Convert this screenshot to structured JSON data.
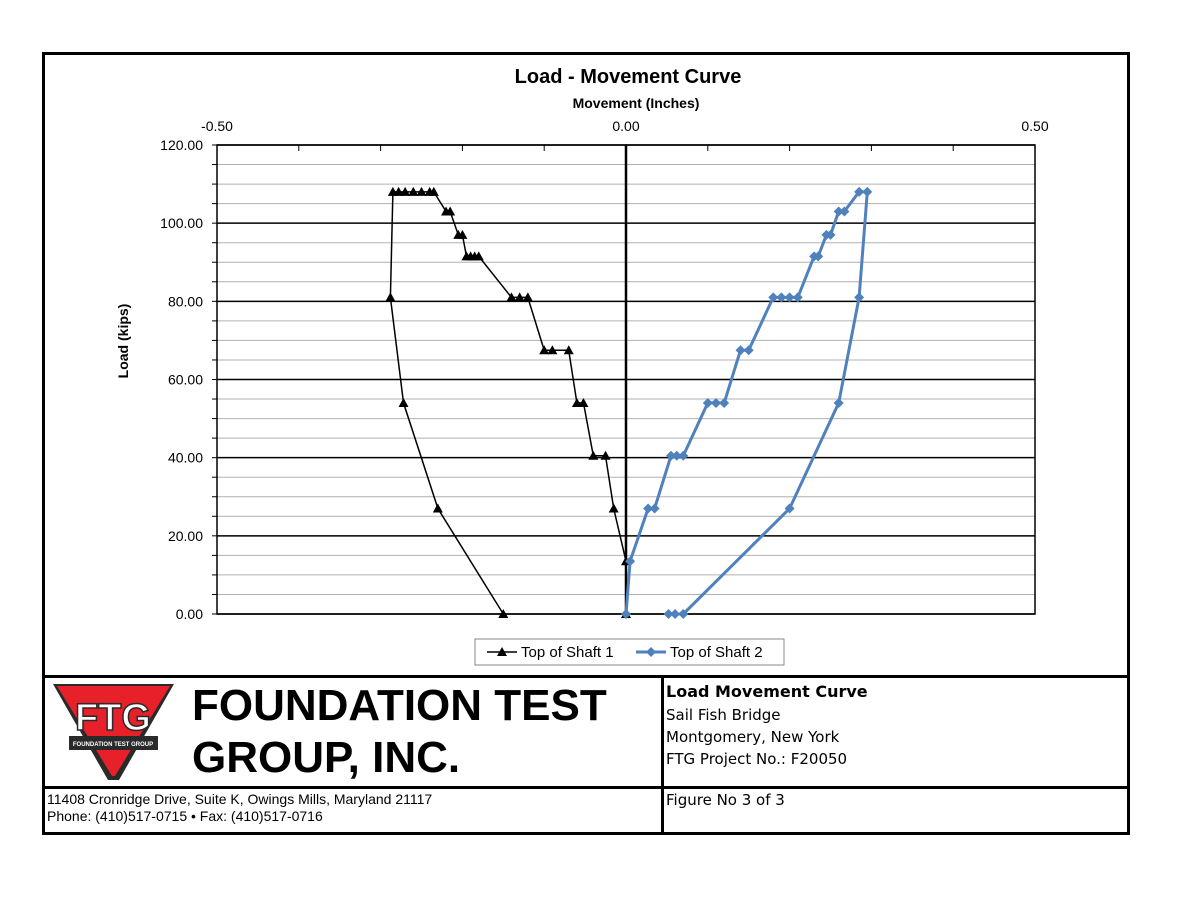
{
  "chart_data": {
    "type": "line",
    "title": "Load - Movement Curve",
    "xlabel": "Movement (Inches)",
    "ylabel": "Load (kips)",
    "xlim": [
      -0.5,
      0.5
    ],
    "ylim": [
      0,
      120
    ],
    "x_ticks": [
      "-0.50",
      "0.00",
      "0.50"
    ],
    "y_ticks": [
      "0.00",
      "20.00",
      "40.00",
      "60.00",
      "80.00",
      "100.00",
      "120.00"
    ],
    "x_axis_position": "top",
    "grid": true,
    "legend_position": "bottom",
    "series": [
      {
        "name": "Top of Shaft 1",
        "color": "#000000",
        "marker": "triangle",
        "points": [
          [
            0.0,
            0.0
          ],
          [
            0.0,
            13.5
          ],
          [
            -0.015,
            27.0
          ],
          [
            -0.025,
            40.5
          ],
          [
            -0.04,
            40.5
          ],
          [
            -0.052,
            54.0
          ],
          [
            -0.06,
            54.0
          ],
          [
            -0.07,
            67.5
          ],
          [
            -0.09,
            67.5
          ],
          [
            -0.1,
            67.5
          ],
          [
            -0.12,
            81.0
          ],
          [
            -0.13,
            81.0
          ],
          [
            -0.14,
            81.0
          ],
          [
            -0.18,
            91.5
          ],
          [
            -0.185,
            91.5
          ],
          [
            -0.19,
            91.5
          ],
          [
            -0.195,
            91.5
          ],
          [
            -0.2,
            97.0
          ],
          [
            -0.205,
            97.0
          ],
          [
            -0.215,
            103.0
          ],
          [
            -0.22,
            103.0
          ],
          [
            -0.235,
            108.0
          ],
          [
            -0.24,
            108.0
          ],
          [
            -0.25,
            108.0
          ],
          [
            -0.26,
            108.0
          ],
          [
            -0.27,
            108.0
          ],
          [
            -0.278,
            108.0
          ],
          [
            -0.285,
            108.0
          ],
          [
            -0.288,
            81.0
          ],
          [
            -0.272,
            54.0
          ],
          [
            -0.23,
            27.0
          ],
          [
            -0.15,
            0.0
          ]
        ]
      },
      {
        "name": "Top of Shaft 2",
        "color": "#4f81bd",
        "marker": "diamond",
        "points": [
          [
            0.0,
            0.0
          ],
          [
            0.005,
            13.5
          ],
          [
            0.027,
            27.0
          ],
          [
            0.035,
            27.0
          ],
          [
            0.055,
            40.5
          ],
          [
            0.062,
            40.5
          ],
          [
            0.07,
            40.5
          ],
          [
            0.1,
            54.0
          ],
          [
            0.11,
            54.0
          ],
          [
            0.12,
            54.0
          ],
          [
            0.14,
            67.5
          ],
          [
            0.15,
            67.5
          ],
          [
            0.18,
            81.0
          ],
          [
            0.19,
            81.0
          ],
          [
            0.2,
            81.0
          ],
          [
            0.21,
            81.0
          ],
          [
            0.23,
            91.5
          ],
          [
            0.235,
            91.5
          ],
          [
            0.245,
            97.0
          ],
          [
            0.25,
            97.0
          ],
          [
            0.26,
            103.0
          ],
          [
            0.267,
            103.0
          ],
          [
            0.285,
            108.0
          ],
          [
            0.295,
            108.0
          ],
          [
            0.285,
            81.0
          ],
          [
            0.26,
            54.0
          ],
          [
            0.2,
            27.0
          ],
          [
            0.07,
            0.0
          ],
          [
            0.06,
            0.0
          ],
          [
            0.052,
            0.0
          ]
        ]
      }
    ]
  },
  "company": {
    "logo_text": "FTG",
    "logo_subtext": "FOUNDATION TEST GROUP",
    "logo_color": "#e8202a",
    "name_line1": "FOUNDATION TEST",
    "name_line2": "GROUP, INC.",
    "address": "11408 Cronridge Drive, Suite K, Owings Mills, Maryland 21117",
    "phone": "Phone: (410)517-0715 • Fax: (410)517-0716"
  },
  "info": {
    "title": "Load Movement Curve",
    "project": "Sail Fish Bridge",
    "location": "Montgomery, New York",
    "project_no": "FTG Project No.: F20050",
    "figure": "Figure No 3 of 3"
  }
}
